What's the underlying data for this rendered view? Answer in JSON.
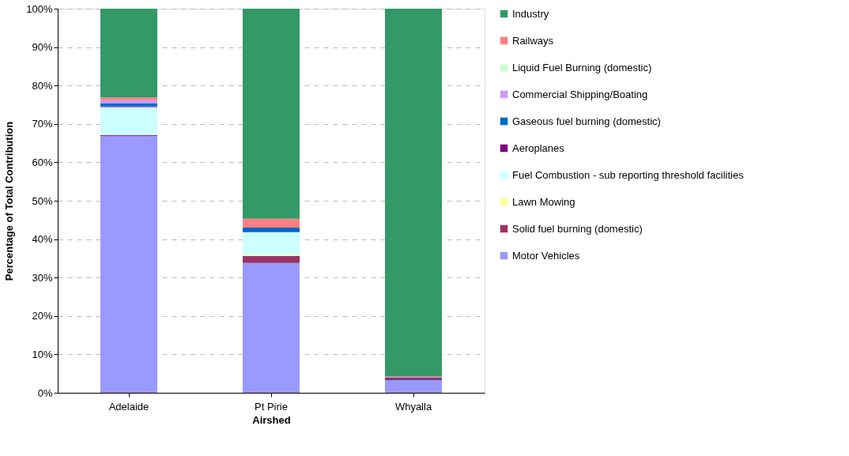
{
  "chart_data": {
    "type": "bar",
    "stacked": true,
    "xlabel": "Airshed",
    "ylabel": "Percentage of Total Contribution",
    "categories": [
      "Adelaide",
      "Pt Pirie",
      "Whyalla"
    ],
    "ylim": [
      0,
      100
    ],
    "yticks": [
      {
        "value": 0,
        "label": "0%"
      },
      {
        "value": 10,
        "label": "10%"
      },
      {
        "value": 20,
        "label": "20%"
      },
      {
        "value": 30,
        "label": "30%"
      },
      {
        "value": 40,
        "label": "40%"
      },
      {
        "value": 50,
        "label": "50%"
      },
      {
        "value": 60,
        "label": "60%"
      },
      {
        "value": 70,
        "label": "70%"
      },
      {
        "value": 80,
        "label": "80%"
      },
      {
        "value": 90,
        "label": "90%"
      },
      {
        "value": 100,
        "label": "100%"
      }
    ],
    "grid": "y",
    "legend": "right",
    "series": [
      {
        "name": "Motor Vehicles",
        "color": "#9999ff",
        "values": [
          66.8,
          33.8,
          3.3
        ]
      },
      {
        "name": "Solid fuel burning (domestic)",
        "color": "#993366",
        "values": [
          0.3,
          1.8,
          0.4
        ]
      },
      {
        "name": "Lawn Mowing",
        "color": "#ffff99",
        "values": [
          null,
          0.2,
          0
        ]
      },
      {
        "name": "Fuel Combustion - sub reporting threshold facilities",
        "color": "#ccffff",
        "values": [
          7.3,
          6.0,
          null
        ]
      },
      {
        "name": "Aeroplanes",
        "color": "#800080",
        "values": [
          0.2,
          0,
          0
        ]
      },
      {
        "name": "Gaseous fuel burning (domestic)",
        "color": "#0066cc",
        "values": [
          0.7,
          1.2,
          0.3
        ]
      },
      {
        "name": "Commercial Shipping/Boating",
        "color": "#cc99ff",
        "values": [
          0.9,
          0,
          0
        ]
      },
      {
        "name": "Liquid Fuel Burning (domestic)",
        "color": "#ccffcc",
        "values": [
          0,
          0,
          0
        ]
      },
      {
        "name": "Railways",
        "color": "#ff8080",
        "values": [
          0.7,
          2.3,
          0.3
        ]
      },
      {
        "name": "Industry",
        "color": "#339966",
        "values": [
          23.1,
          54.7,
          95.7
        ]
      }
    ]
  }
}
